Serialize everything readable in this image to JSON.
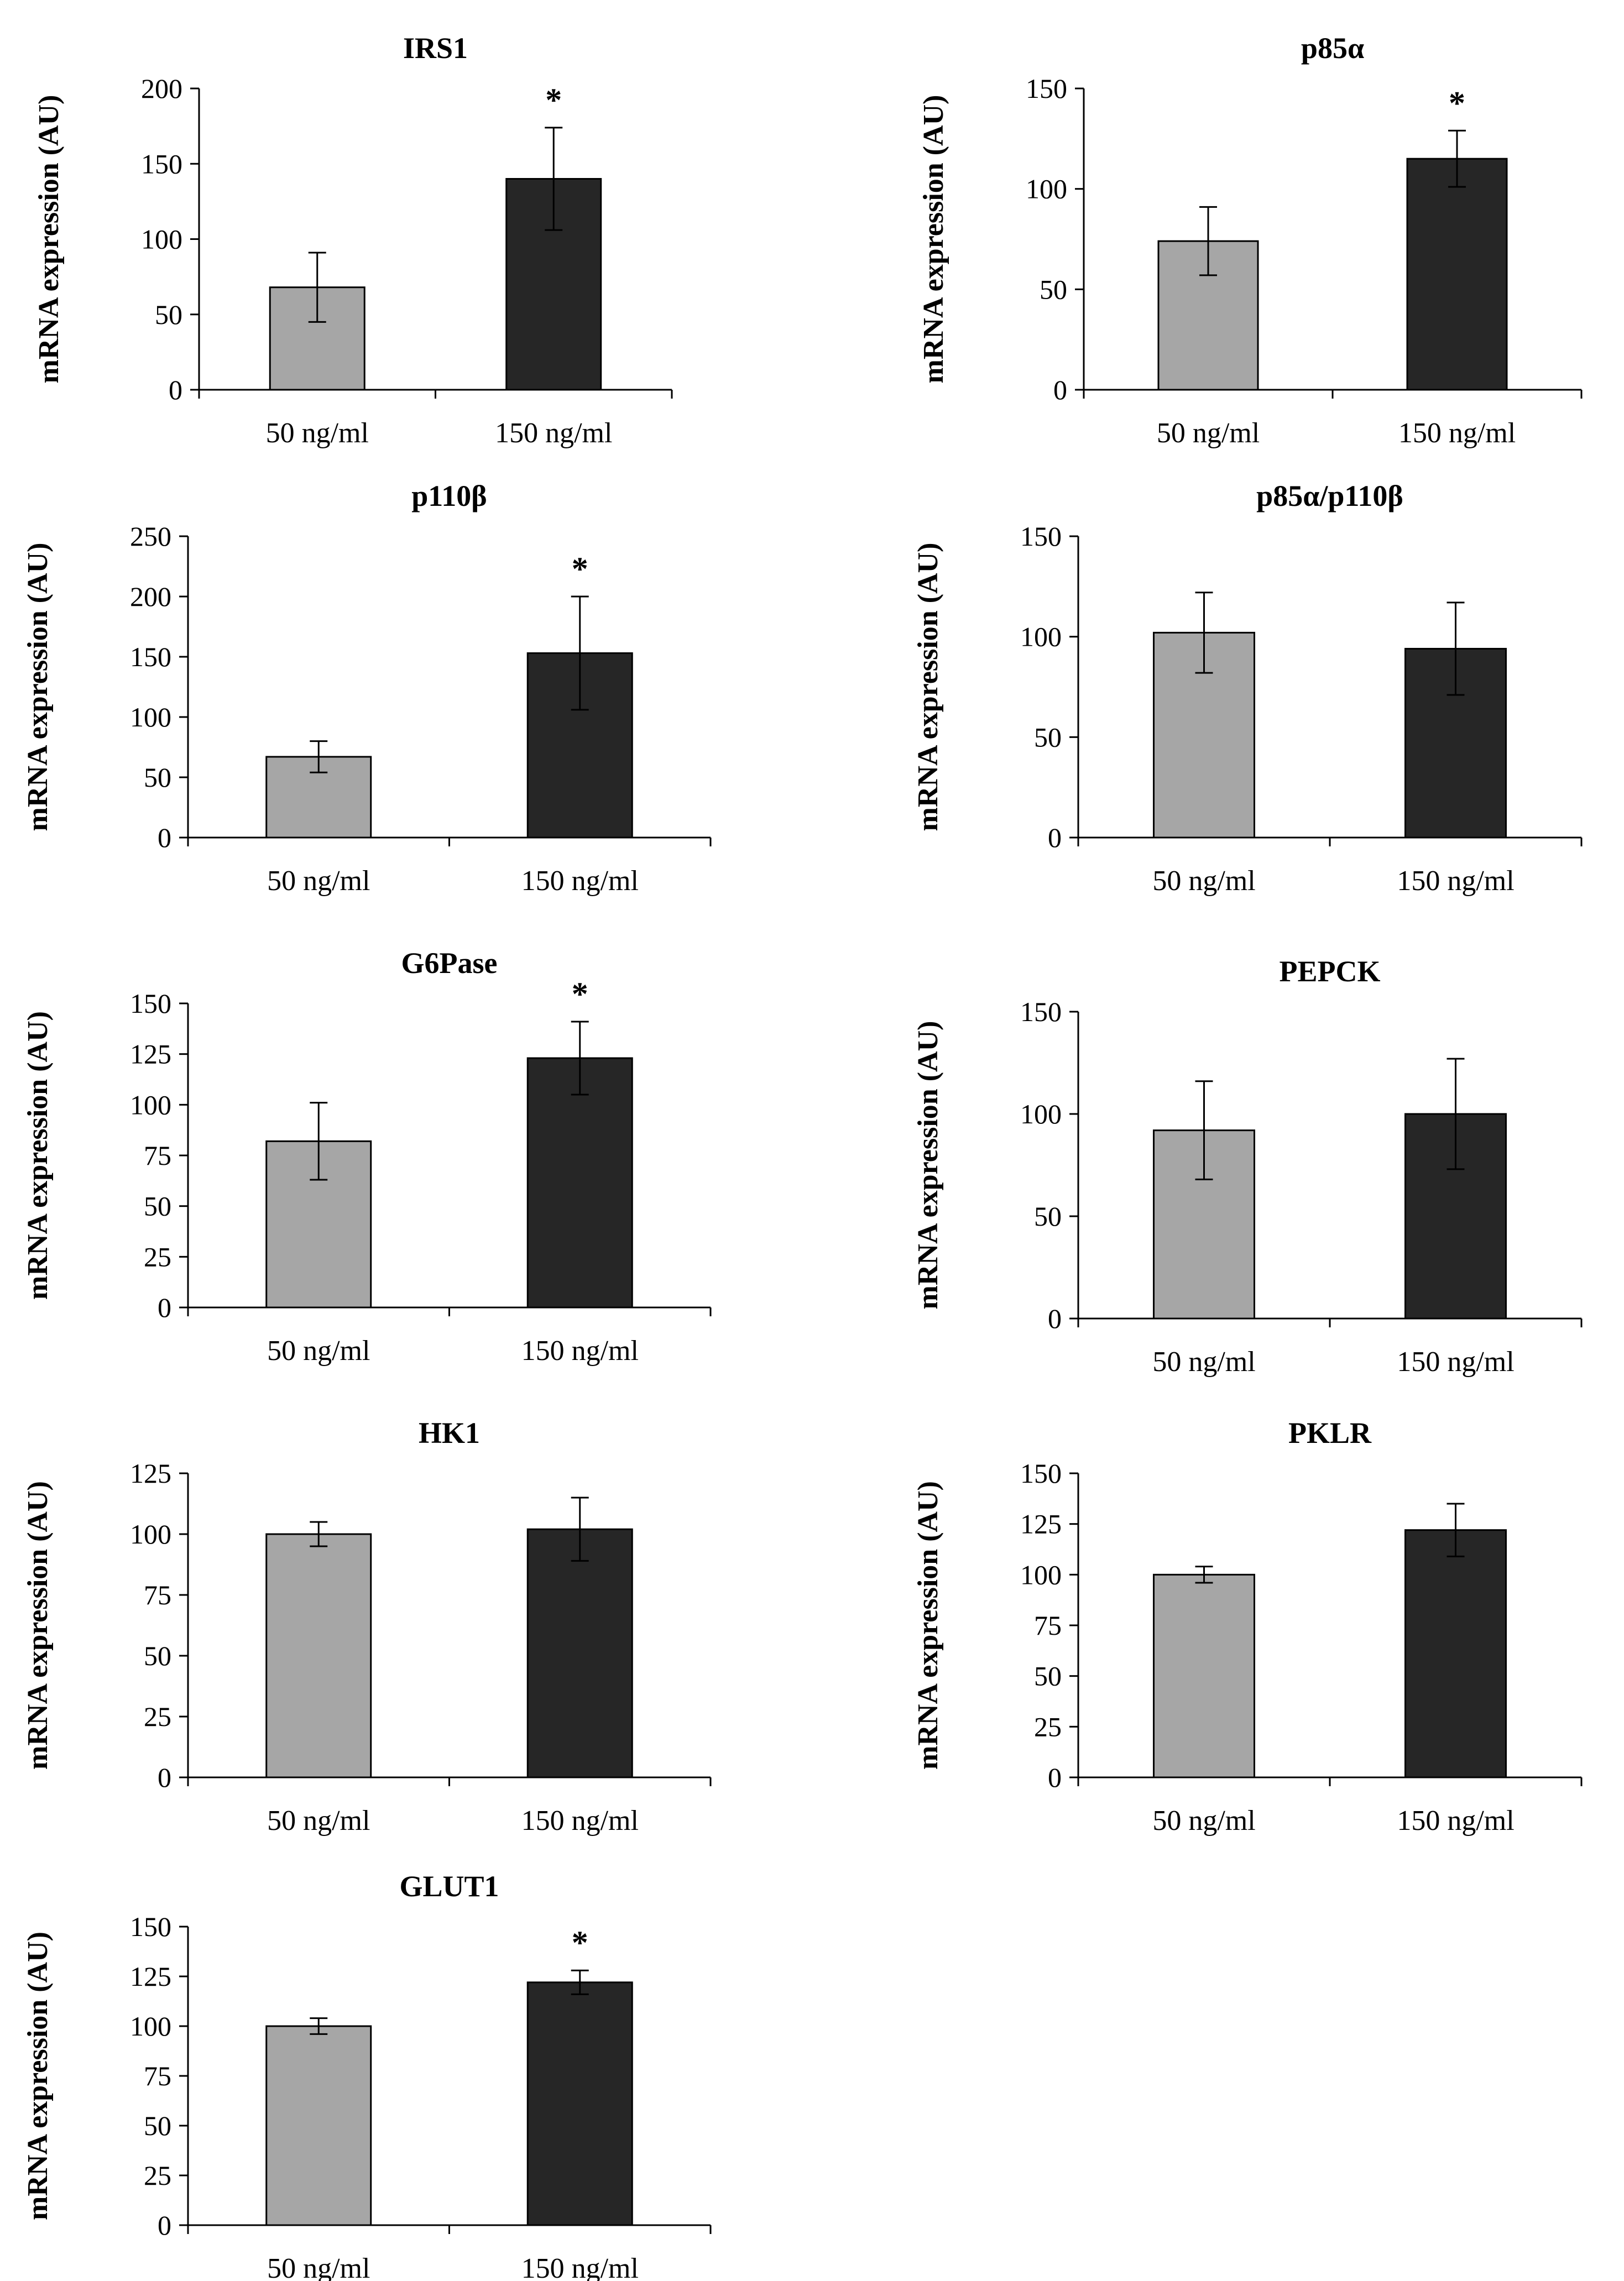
{
  "colors": {
    "bar_low": "#a6a6a6",
    "bar_high": "#262626",
    "axis": "#000000",
    "background": "#ffffff"
  },
  "chart_data": [
    {
      "type": "bar",
      "title": "IRS1",
      "ylabel": "mRNA expression (AU)",
      "xlabel": "",
      "categories": [
        "50 ng/ml",
        "150 ng/ml"
      ],
      "values": [
        68,
        140
      ],
      "errors": [
        23,
        34
      ],
      "significance": [
        "",
        "*"
      ],
      "ylim": [
        0,
        200
      ],
      "yticks": [
        0,
        50,
        100,
        150,
        200
      ],
      "grid": false
    },
    {
      "type": "bar",
      "title": "p85α",
      "ylabel": "mRNA expression (AU)",
      "xlabel": "",
      "categories": [
        "50 ng/ml",
        "150 ng/ml"
      ],
      "values": [
        74,
        115
      ],
      "errors": [
        17,
        14
      ],
      "significance": [
        "",
        "*"
      ],
      "ylim": [
        0,
        150
      ],
      "yticks": [
        0,
        50,
        100,
        150
      ],
      "grid": false
    },
    {
      "type": "bar",
      "title": "p110β",
      "ylabel": "mRNA expression (AU)",
      "xlabel": "",
      "categories": [
        "50 ng/ml",
        "150 ng/ml"
      ],
      "values": [
        67,
        153
      ],
      "errors": [
        13,
        47
      ],
      "significance": [
        "",
        "*"
      ],
      "ylim": [
        0,
        250
      ],
      "yticks": [
        0,
        50,
        100,
        150,
        200,
        250
      ],
      "grid": false
    },
    {
      "type": "bar",
      "title": "p85α/p110β",
      "ylabel": "mRNA expression (AU)",
      "xlabel": "",
      "categories": [
        "50 ng/ml",
        "150 ng/ml"
      ],
      "values": [
        102,
        94
      ],
      "errors": [
        20,
        23
      ],
      "significance": [
        "",
        ""
      ],
      "ylim": [
        0,
        150
      ],
      "yticks": [
        0,
        50,
        100,
        150
      ],
      "grid": false
    },
    {
      "type": "bar",
      "title": "G6Pase",
      "ylabel": "mRNA expression (AU)",
      "xlabel": "",
      "categories": [
        "50 ng/ml",
        "150 ng/ml"
      ],
      "values": [
        82,
        123
      ],
      "errors": [
        19,
        18
      ],
      "significance": [
        "",
        "*"
      ],
      "ylim": [
        0,
        150
      ],
      "yticks": [
        0,
        25,
        50,
        75,
        100,
        125,
        150
      ],
      "grid": false
    },
    {
      "type": "bar",
      "title": "PEPCK",
      "ylabel": "mRNA expression (AU)",
      "xlabel": "",
      "categories": [
        "50 ng/ml",
        "150 ng/ml"
      ],
      "values": [
        92,
        100
      ],
      "errors": [
        24,
        27
      ],
      "significance": [
        "",
        ""
      ],
      "ylim": [
        0,
        150
      ],
      "yticks": [
        0,
        50,
        100,
        150
      ],
      "grid": false
    },
    {
      "type": "bar",
      "title": "HK1",
      "ylabel": "mRNA expression (AU)",
      "xlabel": "",
      "categories": [
        "50 ng/ml",
        "150 ng/ml"
      ],
      "values": [
        100,
        102
      ],
      "errors": [
        5,
        13
      ],
      "significance": [
        "",
        ""
      ],
      "ylim": [
        0,
        125
      ],
      "yticks": [
        0,
        25,
        50,
        75,
        100,
        125
      ],
      "grid": false
    },
    {
      "type": "bar",
      "title": "PKLR",
      "ylabel": "mRNA expression (AU)",
      "xlabel": "",
      "categories": [
        "50 ng/ml",
        "150 ng/ml"
      ],
      "values": [
        100,
        122
      ],
      "errors": [
        4,
        13
      ],
      "significance": [
        "",
        ""
      ],
      "ylim": [
        0,
        150
      ],
      "yticks": [
        0,
        25,
        50,
        75,
        100,
        125,
        150
      ],
      "grid": false
    },
    {
      "type": "bar",
      "title": "GLUT1",
      "ylabel": "mRNA expression (AU)",
      "xlabel": "",
      "categories": [
        "50 ng/ml",
        "150 ng/ml"
      ],
      "values": [
        100,
        122
      ],
      "errors": [
        4,
        6
      ],
      "significance": [
        "",
        "*"
      ],
      "ylim": [
        0,
        150
      ],
      "yticks": [
        0,
        25,
        50,
        75,
        100,
        125,
        150
      ],
      "grid": false
    }
  ]
}
